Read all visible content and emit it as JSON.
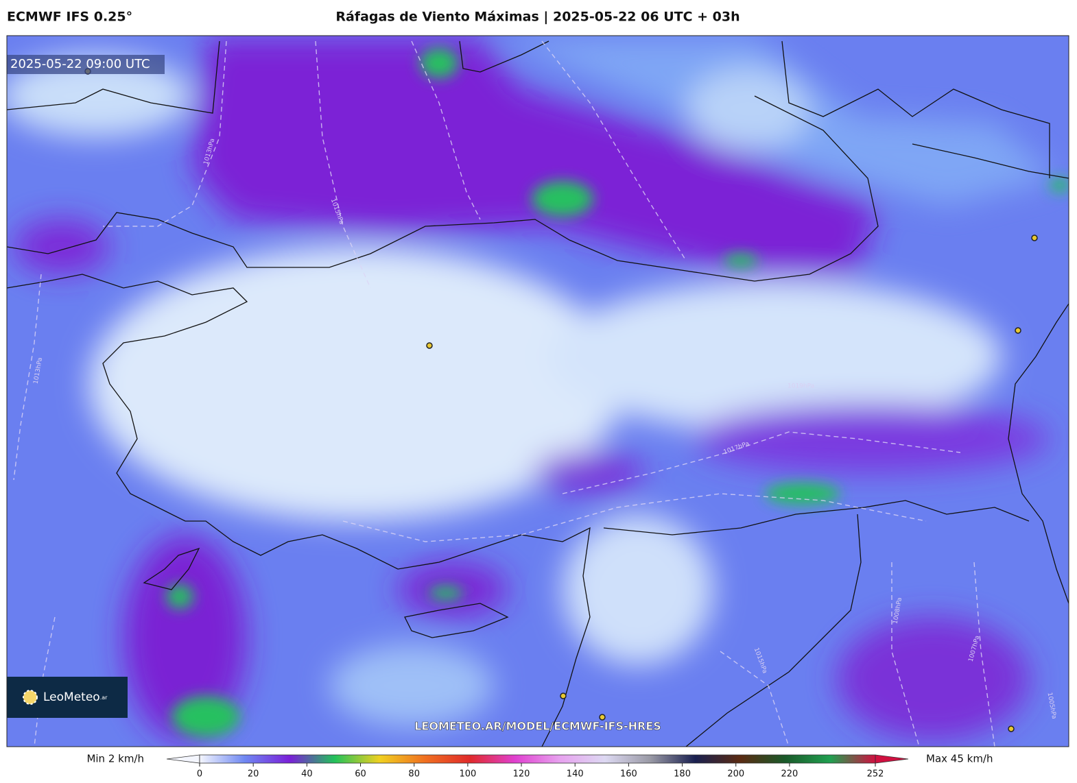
{
  "header": {
    "model": "ECMWF IFS 0.25°",
    "title": "Ráfagas de Viento Máximas | 2025-05-22 06 UTC + 03h"
  },
  "map": {
    "timestamp": "2025-05-22 09:00 UTC",
    "logo": {
      "name": "LeoMeteo",
      "suffix": ".ar"
    },
    "watermark": "LEOMETEO.AR/MODEL/ECMWF-IFS-HRES",
    "isobar_labels": [
      "1013hPa",
      "1015hPa",
      "1013hPa",
      "1019hPa",
      "1017hPa",
      "1008hPa",
      "1007hPa",
      "1015hPa",
      "1005hPa"
    ]
  },
  "colorbar": {
    "min_label": "Min 2 km/h",
    "max_label": "Max 45 km/h",
    "range": [
      0,
      252
    ],
    "ticks": [
      0,
      20,
      40,
      60,
      80,
      100,
      120,
      140,
      160,
      180,
      200,
      220,
      252
    ],
    "colors": [
      "#f4f6fe",
      "#6f88f2",
      "#7a1fd8",
      "#22c25a",
      "#f0d020",
      "#f07020",
      "#e02a2a",
      "#e040d0",
      "#e7a2ef",
      "#ddd9f2",
      "#9a9aa6",
      "#1a2050",
      "#5a2a12",
      "#1a5a2a",
      "#20a050",
      "#d01040"
    ]
  }
}
